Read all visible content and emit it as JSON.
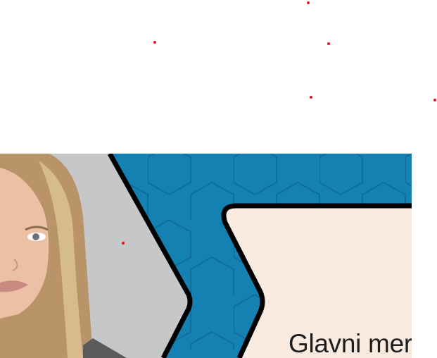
{
  "hero": {
    "card_title": "Glavni mer",
    "photo_alt": "woman-portrait"
  },
  "colors": {
    "accent_blue": "#1581b2",
    "hex_line": "#0f6e99",
    "card_bg": "#f9ebdf",
    "border": "#000000",
    "photo_bg": "#c6c7c9",
    "marker": "#e3161e"
  }
}
